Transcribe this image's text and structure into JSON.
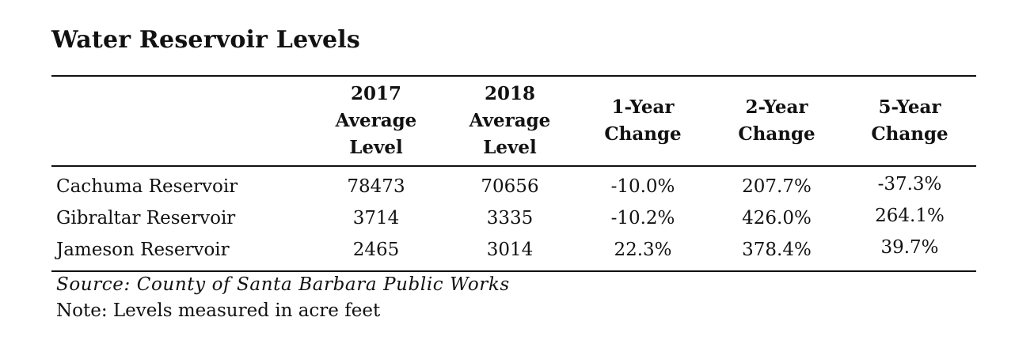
{
  "title": "Water Reservoir Levels",
  "columns": [
    {
      "lines": [
        "2017",
        "Average",
        "Level"
      ]
    },
    {
      "lines": [
        "2018",
        "Average",
        "Level"
      ]
    },
    {
      "lines": [
        "1-Year",
        "Change"
      ]
    },
    {
      "lines": [
        "2-Year",
        "Change"
      ]
    },
    {
      "lines": [
        "5-Year",
        "Change"
      ]
    }
  ],
  "rows": [
    {
      "name": "Cachuma Reservoir",
      "cells": [
        "78473",
        "70656",
        "-10.0%",
        "207.7%",
        "-37.3%"
      ]
    },
    {
      "name": "Gibraltar Reservoir",
      "cells": [
        "3714",
        "3335",
        "-10.2%",
        "426.0%",
        "264.1%"
      ]
    },
    {
      "name": "Jameson Reservoir",
      "cells": [
        "2465",
        "3014",
        "22.3%",
        "378.4%",
        "39.7%"
      ]
    }
  ],
  "source": "Source: County of Santa Barbara Public Works",
  "note": "Note: Levels measured in acre feet"
}
